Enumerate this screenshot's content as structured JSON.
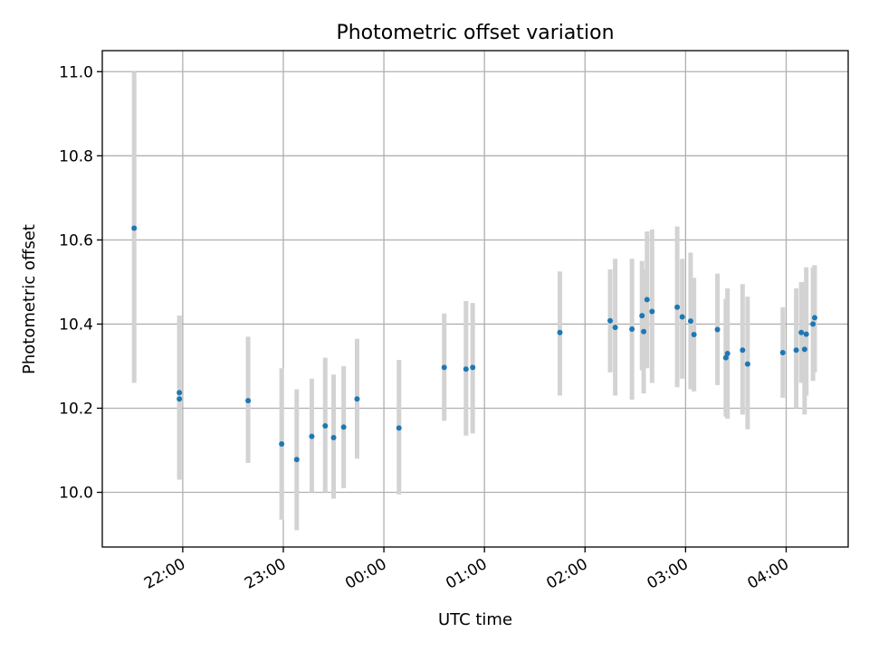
{
  "chart_data": {
    "type": "scatter",
    "title": "Photometric offset variation",
    "xlabel": "UTC time",
    "ylabel": "Photometric offset",
    "xlim": [
      "21:12",
      "04:37"
    ],
    "ylim": [
      9.87,
      11.05
    ],
    "x_ticks": [
      "22:00",
      "23:00",
      "00:00",
      "01:00",
      "02:00",
      "03:00",
      "04:00"
    ],
    "y_ticks": [
      "10.0",
      "10.2",
      "10.4",
      "10.6",
      "10.8",
      "11.0"
    ],
    "grid": true,
    "point_color": "#1f77b4",
    "errorbar_color": "#d3d3d3",
    "points": [
      {
        "time": "21:31",
        "value": 10.628,
        "low": 10.26,
        "high": 11.0
      },
      {
        "time": "21:58",
        "value": 10.237,
        "low": 10.03,
        "high": 10.42
      },
      {
        "time": "21:58",
        "value": 10.222,
        "low": 10.03,
        "high": 10.42
      },
      {
        "time": "22:39",
        "value": 10.218,
        "low": 10.07,
        "high": 10.37
      },
      {
        "time": "22:59",
        "value": 10.115,
        "low": 9.935,
        "high": 10.295
      },
      {
        "time": "23:08",
        "value": 10.078,
        "low": 9.91,
        "high": 10.245
      },
      {
        "time": "23:17",
        "value": 10.133,
        "low": 10.0,
        "high": 10.27
      },
      {
        "time": "23:25",
        "value": 10.158,
        "low": 10.0,
        "high": 10.32
      },
      {
        "time": "23:30",
        "value": 10.13,
        "low": 9.985,
        "high": 10.28
      },
      {
        "time": "23:36",
        "value": 10.155,
        "low": 10.01,
        "high": 10.3
      },
      {
        "time": "23:44",
        "value": 10.222,
        "low": 10.08,
        "high": 10.365
      },
      {
        "time": "00:09",
        "value": 10.153,
        "low": 9.995,
        "high": 10.315
      },
      {
        "time": "00:36",
        "value": 10.297,
        "low": 10.17,
        "high": 10.425
      },
      {
        "time": "00:49",
        "value": 10.293,
        "low": 10.135,
        "high": 10.455
      },
      {
        "time": "00:53",
        "value": 10.297,
        "low": 10.14,
        "high": 10.45
      },
      {
        "time": "01:45",
        "value": 10.38,
        "low": 10.23,
        "high": 10.525
      },
      {
        "time": "02:15",
        "value": 10.408,
        "low": 10.285,
        "high": 10.53
      },
      {
        "time": "02:18",
        "value": 10.392,
        "low": 10.23,
        "high": 10.555
      },
      {
        "time": "02:28",
        "value": 10.388,
        "low": 10.22,
        "high": 10.555
      },
      {
        "time": "02:34",
        "value": 10.42,
        "low": 10.29,
        "high": 10.55
      },
      {
        "time": "02:35",
        "value": 10.382,
        "low": 10.235,
        "high": 10.53
      },
      {
        "time": "02:37",
        "value": 10.458,
        "low": 10.295,
        "high": 10.62
      },
      {
        "time": "02:40",
        "value": 10.43,
        "low": 10.26,
        "high": 10.625
      },
      {
        "time": "02:55",
        "value": 10.44,
        "low": 10.25,
        "high": 10.632
      },
      {
        "time": "02:58",
        "value": 10.417,
        "low": 10.27,
        "high": 10.555
      },
      {
        "time": "03:03",
        "value": 10.407,
        "low": 10.245,
        "high": 10.57
      },
      {
        "time": "03:05",
        "value": 10.375,
        "low": 10.24,
        "high": 10.51
      },
      {
        "time": "03:19",
        "value": 10.387,
        "low": 10.255,
        "high": 10.52
      },
      {
        "time": "03:24",
        "value": 10.32,
        "low": 10.18,
        "high": 10.46
      },
      {
        "time": "03:25",
        "value": 10.33,
        "low": 10.175,
        "high": 10.485
      },
      {
        "time": "03:34",
        "value": 10.338,
        "low": 10.185,
        "high": 10.495
      },
      {
        "time": "03:37",
        "value": 10.305,
        "low": 10.15,
        "high": 10.465
      },
      {
        "time": "03:58",
        "value": 10.332,
        "low": 10.225,
        "high": 10.44
      },
      {
        "time": "04:06",
        "value": 10.338,
        "low": 10.2,
        "high": 10.485
      },
      {
        "time": "04:09",
        "value": 10.38,
        "low": 10.26,
        "high": 10.5
      },
      {
        "time": "04:11",
        "value": 10.34,
        "low": 10.185,
        "high": 10.5
      },
      {
        "time": "04:12",
        "value": 10.376,
        "low": 10.23,
        "high": 10.535
      },
      {
        "time": "04:16",
        "value": 10.4,
        "low": 10.265,
        "high": 10.535
      },
      {
        "time": "04:17",
        "value": 10.415,
        "low": 10.285,
        "high": 10.54
      }
    ]
  }
}
